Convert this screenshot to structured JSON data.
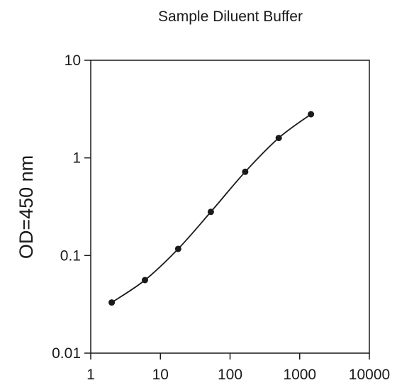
{
  "chart_data": {
    "type": "line",
    "title": "Sample Diluent Buffer",
    "xlabel": "",
    "ylabel": "OD=450 nm",
    "x_scale": "log",
    "y_scale": "log",
    "xlim": [
      1,
      10000
    ],
    "ylim": [
      0.01,
      10
    ],
    "x_ticks": [
      1,
      10,
      100,
      1000,
      10000
    ],
    "x_tick_labels": [
      "1",
      "10",
      "100",
      "1000",
      "10000"
    ],
    "y_ticks": [
      0.01,
      0.1,
      1,
      10
    ],
    "y_tick_labels": [
      "0.01",
      "0.1",
      "1",
      "10"
    ],
    "grid": false,
    "legend": "none",
    "series": [
      {
        "x": [
          2,
          6,
          18,
          53,
          165,
          500,
          1450
        ],
        "y": [
          0.033,
          0.056,
          0.117,
          0.28,
          0.72,
          1.6,
          2.8
        ],
        "color": "#1a1a1a",
        "marker": "circle"
      }
    ]
  }
}
